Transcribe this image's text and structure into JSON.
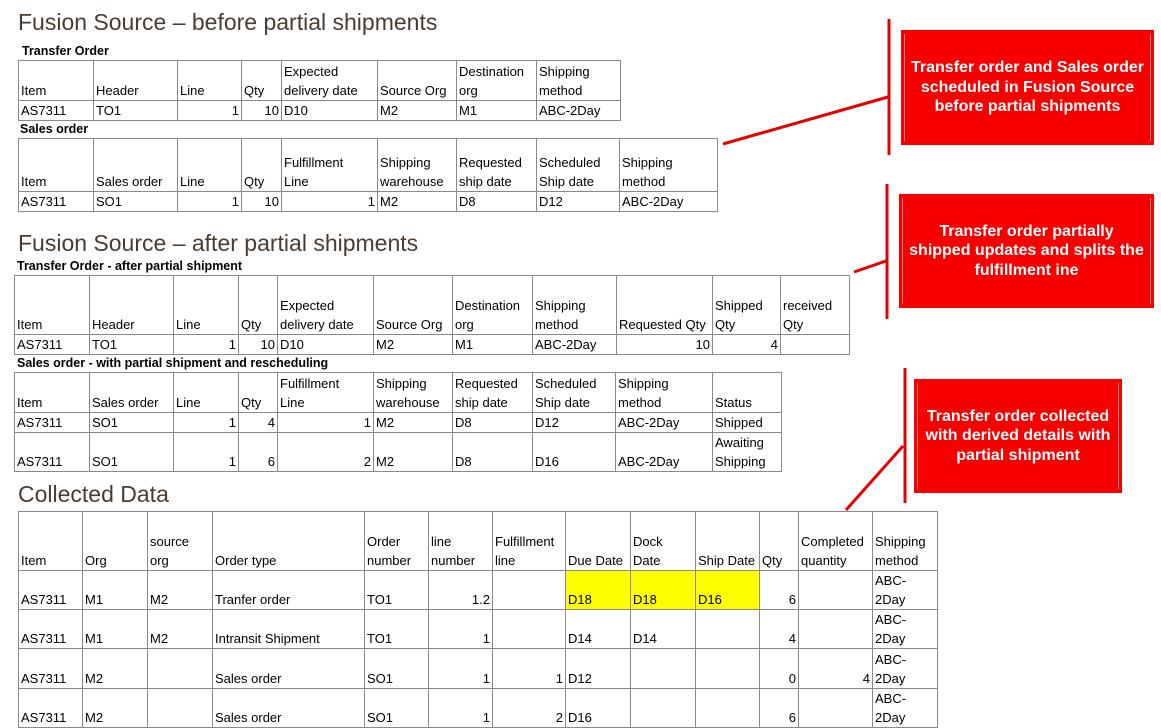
{
  "sections": {
    "before_title": "Fusion Source – before partial shipments",
    "after_title": "Fusion Source – after partial shipments",
    "collected_title": "Collected Data"
  },
  "colors": {
    "accent": "#f80000",
    "highlight": "#ffff00",
    "title": "#4a3c31"
  },
  "tables": [
    {
      "label": "Transfer Order",
      "headers": [
        "Item",
        "Header",
        "Line",
        "Qty",
        "Expected\ndelivery date",
        "Source Org",
        "Destination\norg",
        "Shipping\nmethod"
      ],
      "numeric_columns": [
        2,
        3
      ],
      "rows": [
        [
          "AS7311",
          "TO1",
          "1",
          "10",
          "D10",
          "M2",
          "M1",
          "ABC-2Day"
        ]
      ]
    },
    {
      "label": "Sales order",
      "headers": [
        "Item",
        "Sales order",
        "Line",
        "Qty",
        "Fulfillment\nLine",
        "Shipping\nwarehouse",
        "Requested\nship date",
        "Scheduled\nShip date",
        "Shipping\nmethod"
      ],
      "numeric_columns": [
        2,
        3,
        4
      ],
      "rows": [
        [
          "AS7311",
          "SO1",
          "1",
          "10",
          "1",
          "M2",
          "D8",
          "D12",
          "ABC-2Day"
        ]
      ]
    },
    {
      "label": "Transfer Order - after partial shipment",
      "headers": [
        "Item",
        "Header",
        "Line",
        "Qty",
        "Expected\ndelivery date",
        "Source Org",
        "Destination\norg",
        "Shipping\nmethod",
        "Requested Qty",
        "Shipped\nQty",
        "received\nQty"
      ],
      "numeric_columns": [
        2,
        3,
        8,
        9
      ],
      "rows": [
        [
          "AS7311",
          "TO1",
          "1",
          "10",
          "D10",
          "M2",
          "M1",
          "ABC-2Day",
          "10",
          "4",
          ""
        ]
      ]
    },
    {
      "label": "Sales order - with partial shipment and rescheduling",
      "headers": [
        "Item",
        "Sales order",
        "Line",
        "Qty",
        "Fulfillment\nLine",
        "Shipping\nwarehouse",
        "Requested\nship date",
        "Scheduled\nShip date",
        "Shipping\nmethod",
        "Status"
      ],
      "numeric_columns": [
        2,
        3,
        4
      ],
      "rows": [
        [
          "AS7311",
          "SO1",
          "1",
          "4",
          "1",
          "M2",
          "D8",
          "D12",
          "ABC-2Day",
          "Shipped"
        ],
        [
          "AS7311",
          "SO1",
          "1",
          "6",
          "2",
          "M2",
          "D8",
          "D16",
          "ABC-2Day",
          "Awaiting\nShipping"
        ]
      ]
    },
    {
      "label": "",
      "headers": [
        "Item",
        "Org",
        "source\norg",
        "Order type",
        "Order\nnumber",
        "line\nnumber",
        "Fulfillment\nline",
        "Due Date",
        "Dock\nDate",
        "Ship Date",
        "Qty",
        "Completed\nquantity",
        "Shipping\nmethod"
      ],
      "numeric_columns": [
        5,
        6,
        10,
        11
      ],
      "highlighted_cells": [
        [
          0,
          7
        ],
        [
          0,
          8
        ],
        [
          0,
          9
        ]
      ],
      "rows": [
        [
          "AS7311",
          "M1",
          "M2",
          "Tranfer order",
          "TO1",
          "1.2",
          "",
          "D18",
          "D18",
          "D16",
          "6",
          "",
          "ABC-2Day"
        ],
        [
          "AS7311",
          "M1",
          "M2",
          "Intransit Shipment",
          "TO1",
          "1",
          "",
          "D14",
          "D14",
          "",
          "4",
          "",
          "ABC-2Day"
        ],
        [
          "AS7311",
          "M2",
          "",
          "Sales order",
          "SO1",
          "1",
          "1",
          "D12",
          "",
          "",
          "0",
          "4",
          "ABC-2Day"
        ],
        [
          "AS7311",
          "M2",
          "",
          "Sales order",
          "SO1",
          "1",
          "2",
          "D16",
          "",
          "",
          "6",
          "",
          "ABC-2Day"
        ]
      ]
    }
  ],
  "callouts": [
    "Transfer order and Sales order scheduled in Fusion Source before partial shipments",
    "Transfer order partially shipped updates and splits the fulfillment ine",
    "Transfer order collected with derived details with partial shipment"
  ]
}
